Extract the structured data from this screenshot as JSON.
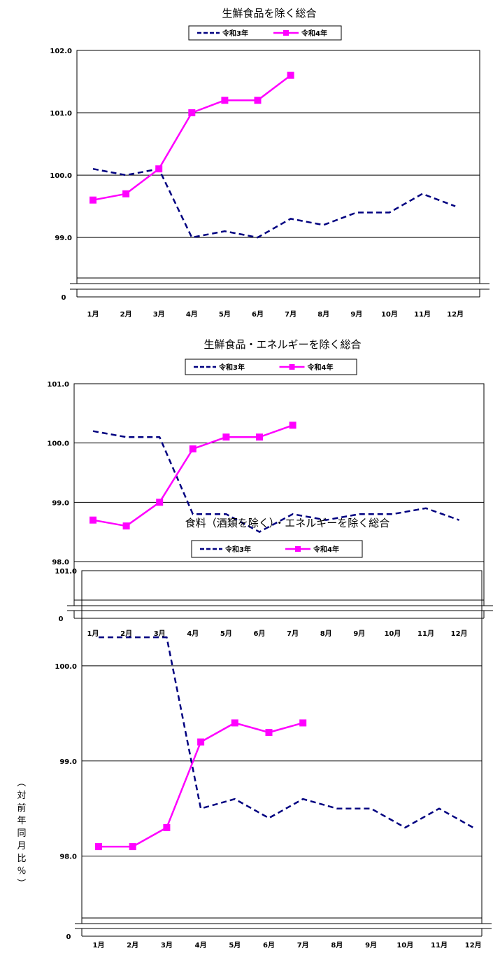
{
  "y_axis_label": "（対前年同月比％）",
  "chart_data": [
    {
      "type": "line",
      "title": "生鮮食品を除く総合",
      "categories": [
        "1月",
        "2月",
        "3月",
        "4月",
        "5月",
        "6月",
        "7月",
        "8月",
        "9月",
        "10月",
        "11月",
        "12月"
      ],
      "series": [
        {
          "name": "令和3年",
          "color": "#000080",
          "style": "dashed",
          "values": [
            100.1,
            100.0,
            100.1,
            99.0,
            99.1,
            99.0,
            99.3,
            99.2,
            99.4,
            99.4,
            99.7,
            99.5
          ]
        },
        {
          "name": "令和4年",
          "color": "#ff00ff",
          "style": "solid-square",
          "values": [
            99.6,
            99.7,
            100.1,
            101.0,
            101.2,
            101.2,
            101.6,
            null,
            null,
            null,
            null,
            null
          ]
        }
      ],
      "ylim": [
        98.35,
        102.0
      ],
      "yticks": [
        "102.0",
        "101.0",
        "100.0",
        "99.0"
      ],
      "axis_break": true,
      "axis_zero": "0",
      "grid": true,
      "legend_position": "top"
    },
    {
      "type": "line",
      "title": "生鮮食品・エネルギーを除く総合",
      "categories": [
        "1月",
        "2月",
        "3月",
        "4月",
        "5月",
        "6月",
        "7月",
        "8月",
        "9月",
        "10月",
        "11月",
        "12月"
      ],
      "series": [
        {
          "name": "令和3年",
          "color": "#000080",
          "style": "dashed",
          "values": [
            100.2,
            100.1,
            100.1,
            98.8,
            98.8,
            98.5,
            98.8,
            98.7,
            98.8,
            98.8,
            98.9,
            98.7
          ]
        },
        {
          "name": "令和4年",
          "color": "#ff00ff",
          "style": "solid-square",
          "values": [
            98.7,
            98.6,
            99.0,
            99.9,
            100.1,
            100.1,
            100.3,
            null,
            null,
            null,
            null,
            null
          ]
        }
      ],
      "ylim": [
        97.35,
        101.0
      ],
      "yticks": [
        "101.0",
        "100.0",
        "99.0",
        "98.0"
      ],
      "axis_break": true,
      "axis_zero": "0",
      "grid": true,
      "legend_position": "top"
    },
    {
      "type": "line",
      "title": "食料（酒類を除く）・エネルギーを除く総合",
      "categories": [
        "1月",
        "2月",
        "3月",
        "4月",
        "5月",
        "6月",
        "7月",
        "8月",
        "9月",
        "10月",
        "11月",
        "12月"
      ],
      "series": [
        {
          "name": "令和3年",
          "color": "#000080",
          "style": "dashed",
          "values": [
            100.3,
            100.3,
            100.3,
            98.5,
            98.6,
            98.4,
            98.6,
            98.5,
            98.5,
            98.3,
            98.5,
            98.3
          ]
        },
        {
          "name": "令和4年",
          "color": "#ff00ff",
          "style": "solid-square",
          "values": [
            98.1,
            98.1,
            98.3,
            99.2,
            99.4,
            99.3,
            99.4,
            null,
            null,
            null,
            null,
            null
          ]
        }
      ],
      "ylim": [
        97.35,
        101.0
      ],
      "yticks": [
        "101.0",
        "100.0",
        "99.0",
        "98.0"
      ],
      "axis_break": true,
      "axis_zero": "0",
      "grid": true,
      "legend_position": "top"
    }
  ]
}
